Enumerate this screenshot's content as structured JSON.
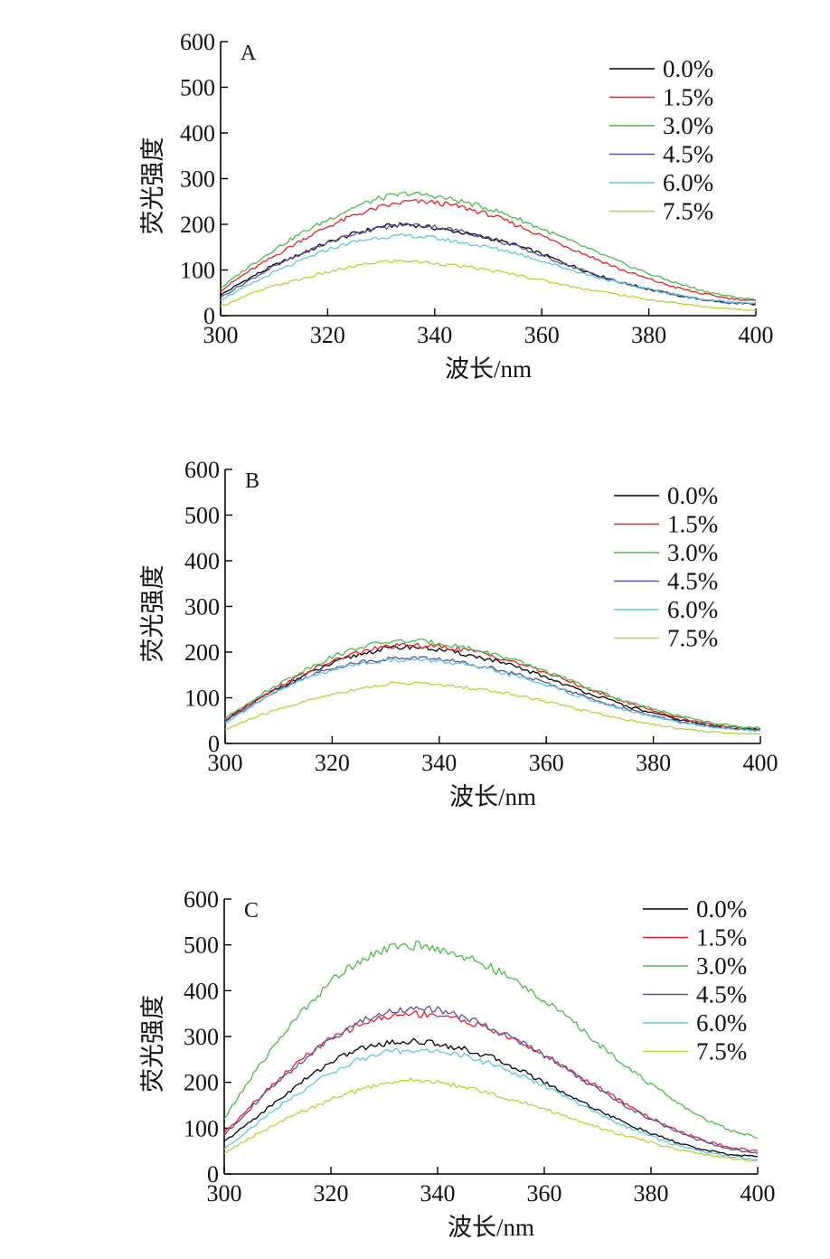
{
  "figure": {
    "background": "#ffffff"
  },
  "chart_data": [
    {
      "type": "line",
      "panel_label": "A",
      "xlabel": "波长/nm",
      "ylabel": "荧光强度",
      "xlim": [
        300,
        400
      ],
      "ylim": [
        0,
        600
      ],
      "xticks": [
        300,
        320,
        340,
        360,
        380,
        400
      ],
      "yticks": [
        0,
        100,
        200,
        300,
        400,
        500,
        600
      ],
      "grid": false,
      "legend_position": "top-right",
      "x": [
        300,
        305,
        310,
        315,
        320,
        325,
        330,
        335,
        340,
        345,
        350,
        355,
        360,
        365,
        370,
        375,
        380,
        385,
        390,
        395,
        400
      ],
      "series": [
        {
          "name": "0.0%",
          "color": "#000000",
          "values": [
            45,
            80,
            110,
            135,
            160,
            180,
            195,
            200,
            192,
            182,
            170,
            155,
            135,
            112,
            90,
            72,
            58,
            45,
            35,
            28,
            25
          ]
        },
        {
          "name": "1.5%",
          "color": "#e8202a",
          "values": [
            55,
            95,
            130,
            165,
            195,
            220,
            238,
            250,
            248,
            238,
            222,
            200,
            175,
            150,
            125,
            100,
            80,
            62,
            48,
            38,
            32
          ]
        },
        {
          "name": "3.0%",
          "color": "#4db848",
          "values": [
            60,
            105,
            145,
            180,
            210,
            238,
            258,
            268,
            262,
            250,
            235,
            215,
            190,
            165,
            140,
            115,
            92,
            72,
            55,
            42,
            35
          ]
        },
        {
          "name": "4.5%",
          "color": "#5a4fa0",
          "values": [
            40,
            75,
            108,
            135,
            160,
            180,
            193,
            200,
            195,
            185,
            170,
            152,
            132,
            110,
            90,
            72,
            58,
            45,
            35,
            28,
            24
          ]
        },
        {
          "name": "6.0%",
          "color": "#5bc8dc",
          "values": [
            35,
            65,
            95,
            120,
            145,
            162,
            172,
            175,
            170,
            160,
            150,
            138,
            120,
            102,
            85,
            70,
            58,
            46,
            36,
            30,
            28
          ]
        },
        {
          "name": "7.5%",
          "color": "#b5d334",
          "values": [
            20,
            45,
            65,
            80,
            95,
            108,
            118,
            120,
            115,
            108,
            100,
            90,
            78,
            65,
            55,
            45,
            35,
            28,
            20,
            15,
            12
          ]
        }
      ]
    },
    {
      "type": "line",
      "panel_label": "B",
      "xlabel": "波长/nm",
      "ylabel": "荧光强度",
      "xlim": [
        300,
        400
      ],
      "ylim": [
        0,
        600
      ],
      "xticks": [
        300,
        320,
        340,
        360,
        380,
        400
      ],
      "yticks": [
        0,
        100,
        200,
        300,
        400,
        500,
        600
      ],
      "grid": false,
      "legend_position": "top-right",
      "x": [
        300,
        305,
        310,
        315,
        320,
        325,
        330,
        335,
        340,
        345,
        350,
        355,
        360,
        365,
        370,
        375,
        380,
        385,
        390,
        395,
        400
      ],
      "series": [
        {
          "name": "0.0%",
          "color": "#000000",
          "values": [
            50,
            88,
            122,
            150,
            175,
            195,
            208,
            212,
            205,
            195,
            182,
            165,
            145,
            122,
            102,
            82,
            66,
            52,
            40,
            33,
            30
          ]
        },
        {
          "name": "1.5%",
          "color": "#e8202a",
          "values": [
            52,
            90,
            125,
            155,
            180,
            200,
            212,
            215,
            212,
            205,
            192,
            175,
            155,
            132,
            110,
            90,
            72,
            56,
            44,
            36,
            32
          ]
        },
        {
          "name": "3.0%",
          "color": "#4db848",
          "values": [
            55,
            95,
            130,
            162,
            190,
            210,
            222,
            225,
            220,
            210,
            196,
            178,
            158,
            135,
            112,
            92,
            75,
            60,
            47,
            38,
            34
          ]
        },
        {
          "name": "4.5%",
          "color": "#5a4fa0",
          "values": [
            48,
            85,
            118,
            145,
            165,
            178,
            185,
            188,
            185,
            176,
            165,
            150,
            132,
            112,
            92,
            75,
            60,
            48,
            38,
            32,
            28
          ]
        },
        {
          "name": "6.0%",
          "color": "#5bc8dc",
          "values": [
            45,
            82,
            115,
            142,
            162,
            175,
            182,
            183,
            180,
            172,
            160,
            145,
            128,
            108,
            90,
            72,
            58,
            46,
            37,
            31,
            28
          ]
        },
        {
          "name": "7.5%",
          "color": "#b5d334",
          "values": [
            30,
            55,
            75,
            92,
            108,
            120,
            130,
            133,
            128,
            122,
            115,
            105,
            92,
            78,
            65,
            52,
            42,
            33,
            26,
            22,
            20
          ]
        }
      ]
    },
    {
      "type": "line",
      "panel_label": "C",
      "xlabel": "波长/nm",
      "ylabel": "荧光强度",
      "xlim": [
        300,
        400
      ],
      "ylim": [
        0,
        600
      ],
      "xticks": [
        300,
        320,
        340,
        360,
        380,
        400
      ],
      "yticks": [
        0,
        100,
        200,
        300,
        400,
        500,
        600
      ],
      "grid": false,
      "legend_position": "top-right",
      "x": [
        300,
        305,
        310,
        315,
        320,
        325,
        330,
        335,
        340,
        345,
        350,
        355,
        360,
        365,
        370,
        375,
        380,
        385,
        390,
        395,
        400
      ],
      "series": [
        {
          "name": "0.0%",
          "color": "#000000",
          "values": [
            70,
            115,
            160,
            205,
            245,
            272,
            285,
            290,
            285,
            272,
            255,
            230,
            200,
            170,
            140,
            112,
            88,
            68,
            52,
            42,
            38
          ]
        },
        {
          "name": "1.5%",
          "color": "#e8202a",
          "values": [
            90,
            150,
            205,
            255,
            295,
            325,
            342,
            350,
            348,
            335,
            315,
            290,
            260,
            225,
            190,
            155,
            122,
            95,
            72,
            58,
            50
          ]
        },
        {
          "name": "3.0%",
          "color": "#4db848",
          "values": [
            120,
            210,
            290,
            360,
            420,
            465,
            490,
            500,
            492,
            475,
            450,
            418,
            380,
            335,
            285,
            240,
            195,
            155,
            120,
            95,
            80
          ]
        },
        {
          "name": "4.5%",
          "color": "#5a4fa0",
          "values": [
            85,
            145,
            200,
            250,
            295,
            330,
            352,
            362,
            358,
            342,
            320,
            292,
            258,
            222,
            185,
            150,
            118,
            92,
            70,
            55,
            45
          ]
        },
        {
          "name": "6.0%",
          "color": "#5bc8dc",
          "values": [
            55,
            100,
            145,
            185,
            220,
            248,
            265,
            270,
            268,
            258,
            240,
            218,
            192,
            162,
            132,
            105,
            82,
            62,
            48,
            38,
            32
          ]
        },
        {
          "name": "7.5%",
          "color": "#b5d334",
          "values": [
            45,
            80,
            110,
            138,
            162,
            182,
            198,
            205,
            200,
            190,
            175,
            160,
            142,
            122,
            102,
            84,
            68,
            54,
            42,
            34,
            28
          ]
        }
      ]
    }
  ]
}
